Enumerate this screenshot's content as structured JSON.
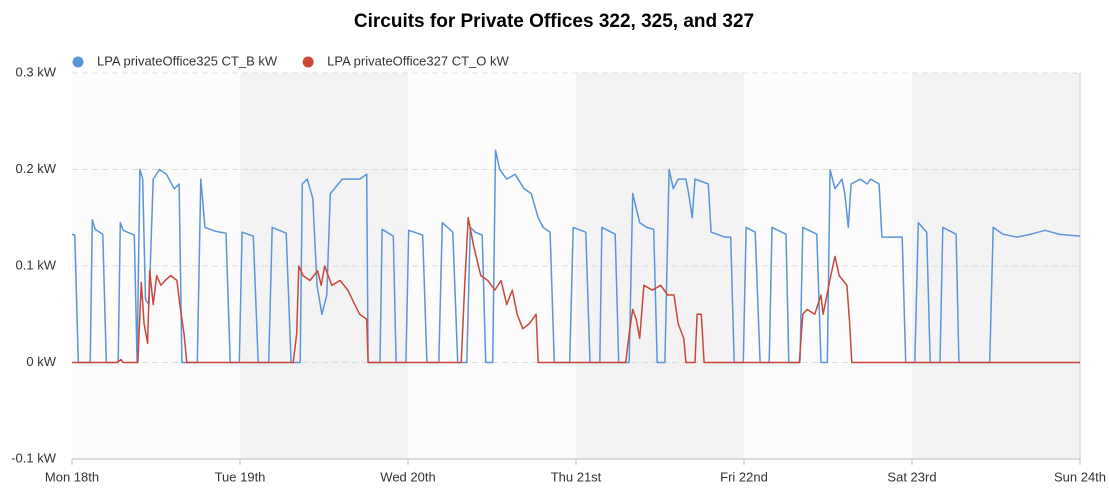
{
  "chart_data": {
    "type": "line",
    "title": "Circuits for Private Offices 322, 325, and 327",
    "legend": "top-left",
    "grid": true,
    "xlim": [
      0,
      144
    ],
    "xticks": [
      {
        "value": 0,
        "label": "Mon 18th"
      },
      {
        "value": 24,
        "label": "Tue 19th"
      },
      {
        "value": 48,
        "label": "Wed 20th"
      },
      {
        "value": 72,
        "label": "Thu 21st"
      },
      {
        "value": 96,
        "label": "Fri 22nd"
      },
      {
        "value": 120,
        "label": "Sat 23rd"
      },
      {
        "value": 144,
        "label": "Sun 24th"
      }
    ],
    "ylim": [
      -0.1,
      0.3
    ],
    "yticks": [
      {
        "value": -0.1,
        "label": "-0.1 kW"
      },
      {
        "value": 0,
        "label": "0 kW"
      },
      {
        "value": 0.1,
        "label": "0.1 kW"
      },
      {
        "value": 0.2,
        "label": "0.2 kW"
      },
      {
        "value": 0.3,
        "label": "0.3 kW"
      }
    ],
    "series": [
      {
        "name": "LPA privateOffice325 CT_B kW",
        "color": "#5b95d8",
        "x": [
          0,
          0.4,
          0.9,
          2.6,
          2.9,
          3.3,
          4.4,
          4.9,
          6.6,
          6.9,
          7.3,
          8.9,
          9.3,
          9.7,
          10.1,
          10.5,
          11,
          11.6,
          12.5,
          13.5,
          14.6,
          15.3,
          15.7,
          17.9,
          18.4,
          19,
          20.5,
          22,
          22.6,
          23.9,
          24.3,
          25.9,
          26.6,
          28.1,
          28.6,
          30.6,
          31.3,
          32.6,
          32.9,
          33.6,
          34.4,
          35,
          35.7,
          36.4,
          36.9,
          38.6,
          41.1,
          42.1,
          42.3,
          44,
          44.3,
          45.9,
          46.3,
          47.7,
          48.1,
          50.1,
          50.7,
          52.4,
          52.9,
          54.4,
          55.1,
          56.4,
          56.9,
          57.6,
          58.6,
          59.1,
          60.1,
          60.5,
          61.1,
          62.1,
          63.3,
          64.6,
          65.6,
          66.6,
          67.3,
          68.3,
          68.9,
          71.1,
          71.6,
          73.4,
          74,
          75.4,
          75.7,
          77.6,
          78.1,
          79.6,
          80.1,
          81.1,
          82.1,
          83.1,
          83.6,
          84.7,
          85.3,
          85.9,
          86.6,
          87.7,
          88.1,
          88.6,
          89,
          90.9,
          91.3,
          93.3,
          94.1,
          94.6,
          95.9,
          96.3,
          97.6,
          98.3,
          99.6,
          100,
          102,
          102.4,
          104,
          104.4,
          106.4,
          107,
          107.9,
          108.3,
          109,
          110,
          110.4,
          110.9,
          111.3,
          112.6,
          113.6,
          114.1,
          115.3,
          115.7,
          118,
          118.6,
          119.1,
          120.4,
          120.9,
          122.1,
          122.6,
          124,
          124.4,
          126.3,
          126.7,
          131.1,
          131.6,
          133,
          135,
          137,
          139,
          141,
          144
        ],
        "values": [
          0.133,
          0.132,
          0,
          0,
          0.148,
          0.138,
          0.133,
          0,
          0,
          0.145,
          0.137,
          0.132,
          0,
          0.2,
          0.19,
          0.065,
          0.06,
          0.19,
          0.2,
          0.195,
          0.18,
          0.185,
          0,
          0,
          0.19,
          0.14,
          0.136,
          0.134,
          0,
          0,
          0.135,
          0.131,
          0,
          0,
          0.14,
          0.134,
          0,
          0,
          0.185,
          0.19,
          0.17,
          0.08,
          0.05,
          0.07,
          0.175,
          0.19,
          0.19,
          0.195,
          0,
          0,
          0.138,
          0.131,
          0,
          0,
          0.137,
          0.132,
          0,
          0,
          0.145,
          0.135,
          0,
          0,
          0.14,
          0.135,
          0.132,
          0,
          0,
          0.22,
          0.2,
          0.19,
          0.195,
          0.18,
          0.175,
          0.15,
          0.14,
          0.135,
          0,
          0,
          0.14,
          0.135,
          0,
          0,
          0.14,
          0.133,
          0,
          0,
          0.175,
          0.145,
          0.14,
          0.138,
          0,
          0,
          0.2,
          0.18,
          0.19,
          0.19,
          0.175,
          0.15,
          0.19,
          0.185,
          0.135,
          0.13,
          0.13,
          0,
          0,
          0.14,
          0.135,
          0,
          0,
          0.14,
          0.133,
          0,
          0,
          0.14,
          0.133,
          0,
          0,
          0.2,
          0.18,
          0.19,
          0.175,
          0.14,
          0.185,
          0.19,
          0.185,
          0.19,
          0.185,
          0.13,
          0.13,
          0.13,
          0,
          0,
          0.145,
          0.135,
          0,
          0,
          0.14,
          0.133,
          0,
          0,
          0.14,
          0.133,
          0.13,
          0.133,
          0.137,
          0.133,
          0.131
        ]
      },
      {
        "name": "LPA privateOffice327 CT_O kW",
        "color": "#c9483a",
        "x": [
          0,
          6.4,
          7,
          7.3,
          9.4,
          9.9,
          10.3,
          10.8,
          11.1,
          11.6,
          12.1,
          12.7,
          13.3,
          14.1,
          15,
          15.4,
          16,
          16.4,
          31.6,
          32.1,
          32.4,
          33,
          34,
          35.1,
          35.6,
          36.1,
          37.1,
          38.3,
          39.4,
          40.4,
          41.1,
          42.1,
          42.3,
          55.6,
          56.1,
          56.6,
          57.4,
          58.4,
          59.4,
          60.4,
          61.3,
          62.1,
          62.9,
          63.6,
          64.4,
          65.3,
          66.3,
          66.6,
          79.1,
          79.6,
          80.1,
          80.6,
          81.1,
          81.7,
          82.9,
          84.1,
          85.1,
          86,
          86.6,
          87.4,
          87.7,
          89,
          89.3,
          89.9,
          90.3,
          103.9,
          104.4,
          105,
          106.1,
          107,
          107.3,
          108.4,
          109,
          109.6,
          110.7,
          111.1,
          111.4,
          144
        ],
        "values": [
          0,
          0,
          0.003,
          0,
          0,
          0.083,
          0.04,
          0.02,
          0.095,
          0.06,
          0.09,
          0.08,
          0.085,
          0.09,
          0.085,
          0.06,
          0.03,
          0,
          0,
          0.03,
          0.1,
          0.09,
          0.085,
          0.095,
          0.08,
          0.1,
          0.08,
          0.085,
          0.075,
          0.06,
          0.05,
          0.045,
          0,
          0,
          0.08,
          0.15,
          0.12,
          0.09,
          0.085,
          0.075,
          0.085,
          0.06,
          0.075,
          0.05,
          0.035,
          0.04,
          0.05,
          0,
          0,
          0.03,
          0.055,
          0.045,
          0.025,
          0.08,
          0.075,
          0.08,
          0.07,
          0.07,
          0.04,
          0.025,
          0,
          0,
          0.05,
          0.05,
          0,
          0,
          0.05,
          0.055,
          0.05,
          0.07,
          0.05,
          0.09,
          0.11,
          0.09,
          0.08,
          0.04,
          0,
          0
        ]
      }
    ]
  }
}
